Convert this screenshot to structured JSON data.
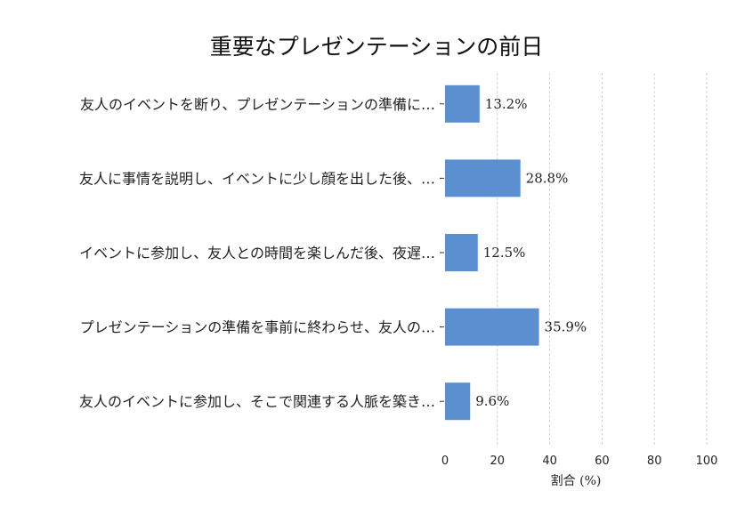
{
  "chart_data": {
    "type": "bar",
    "orientation": "horizontal",
    "title": "重要なプレゼンテーションの前日",
    "categories": [
      "友人のイベントを断り、プレゼンテーションの準備に…",
      "友人に事情を説明し、イベントに少し顔を出した後、…",
      "イベントに参加し、友人との時間を楽しんだ後、夜遅…",
      "プレゼンテーションの準備を事前に終わらせ、友人の…",
      "友人のイベントに参加し、そこで関連する人脈を築き…"
    ],
    "values": [
      13.2,
      28.8,
      12.5,
      35.9,
      9.6
    ],
    "value_labels": [
      "13.2%",
      "28.8%",
      "12.5%",
      "35.9%",
      "9.6%"
    ],
    "xlabel": "割合 (%)",
    "ylabel": "",
    "xlim": [
      0,
      100
    ],
    "xticks": [
      0,
      20,
      40,
      60,
      80,
      100
    ],
    "grid": "x-dashed",
    "bar_color": "#5b8fd0"
  }
}
